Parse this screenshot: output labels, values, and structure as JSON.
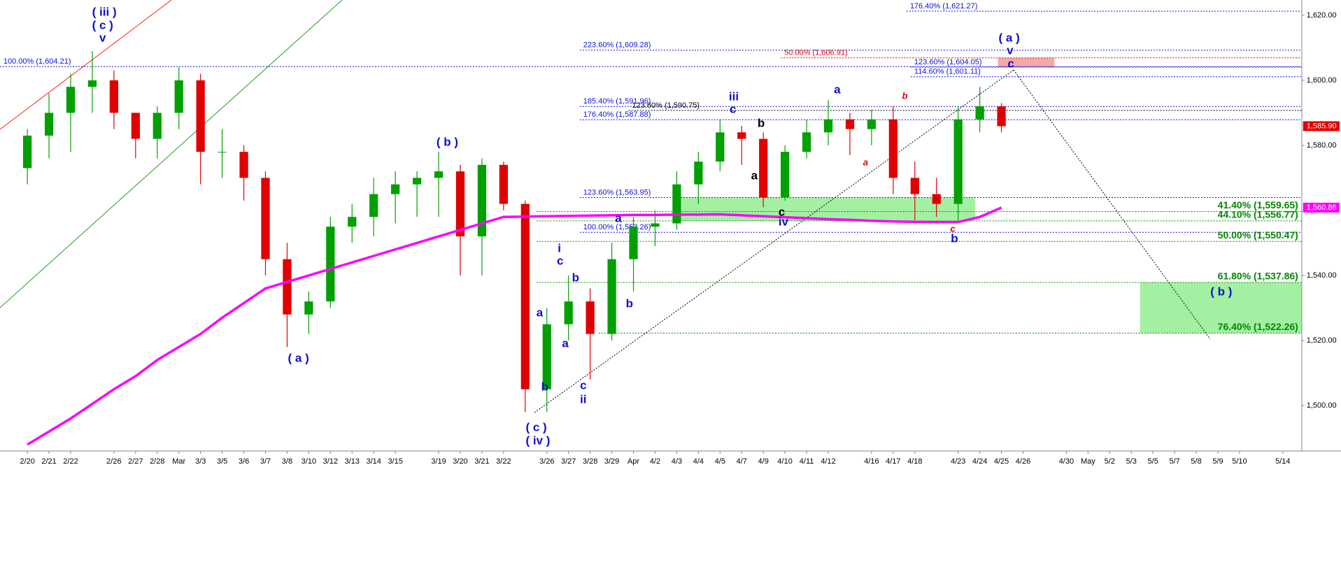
{
  "chart_data": {
    "type": "candlestick",
    "categories": [
      "2/20",
      "2/21",
      "2/22",
      null,
      "2/26",
      "2/27",
      "2/28",
      "Mar",
      "3/3",
      "3/5",
      "3/6",
      "3/7",
      "3/8",
      "3/10",
      "3/12",
      "3/13",
      "3/14",
      "3/15",
      null,
      "3/19",
      "3/20",
      "3/21",
      "3/22",
      null,
      "3/26",
      "3/27",
      "3/28",
      "3/29",
      "Apr",
      "4/2",
      "4/3",
      "4/4",
      "4/5",
      "4/7",
      "4/9",
      "4/10",
      "4/11",
      "4/12",
      null,
      "4/16",
      "4/17",
      "4/18",
      null,
      "4/23",
      "4/24",
      "4/25",
      "4/26",
      null,
      "4/30",
      "May",
      "5/2",
      "5/3",
      "5/5",
      "5/7",
      "5/8",
      "5/9",
      "5/10",
      null,
      "5/14"
    ],
    "price": {
      "up_color": "#00a000",
      "down_color": "#e00000",
      "open": [
        1573,
        1583,
        1590,
        1598,
        1600,
        1590,
        1582,
        1590,
        1600,
        1578,
        1578,
        1570,
        1545,
        1528,
        1532,
        1555,
        1558,
        1565,
        1568,
        1570,
        1572,
        1552,
        1574,
        1562,
        1505,
        1525,
        1532,
        1522,
        1545,
        1555,
        1556,
        1568,
        1575,
        1584,
        1582,
        1564,
        1578,
        1584,
        1588,
        1585,
        1588,
        1570,
        1565,
        1562,
        1588,
        1592,
        null,
        null,
        null,
        null,
        null,
        null,
        null,
        null,
        null,
        null,
        null,
        null,
        null
      ],
      "high": [
        1585,
        1596,
        1602,
        1609,
        1603,
        1590,
        1592,
        1604,
        1602,
        1585,
        1580,
        1572,
        1550,
        1535,
        1558,
        1562,
        1570,
        1572,
        1572,
        1578,
        1574,
        1576,
        1575,
        1563,
        1530,
        1540,
        1536,
        1550,
        1558,
        1560,
        1572,
        1578,
        1588,
        1586,
        1584,
        1580,
        1588,
        1594,
        1590,
        1591,
        1592,
        1575,
        1570,
        1592,
        1598,
        1593,
        null,
        null,
        null,
        null,
        null,
        null,
        null,
        null,
        null,
        null,
        null,
        null,
        null
      ],
      "low": [
        1568,
        1576,
        1578,
        1590,
        1585,
        1576,
        1576,
        1585,
        1568,
        1570,
        1563,
        1540,
        1518,
        1522,
        1530,
        1550,
        1552,
        1556,
        1558,
        1558,
        1540,
        1540,
        1560,
        1498,
        1498,
        1520,
        1508,
        1520,
        1535,
        1549,
        1554,
        1562,
        1572,
        1574,
        1561,
        1563,
        1576,
        1580,
        1577,
        1580,
        1565,
        1557,
        1558,
        1557,
        1584,
        1584,
        null,
        null,
        null,
        null,
        null,
        null,
        null,
        null,
        null,
        null,
        null,
        null,
        null
      ],
      "close": [
        1583,
        1590,
        1598,
        1600,
        1590,
        1582,
        1590,
        1600,
        1578,
        1578,
        1570,
        1545,
        1528,
        1532,
        1555,
        1558,
        1565,
        1568,
        1570,
        1572,
        1552,
        1574,
        1562,
        1505,
        1525,
        1532,
        1522,
        1545,
        1555,
        1556,
        1568,
        1575,
        1584,
        1582,
        1564,
        1578,
        1584,
        1588,
        1585,
        1588,
        1570,
        1565,
        1562,
        1588,
        1592,
        1585.9,
        null,
        null,
        null,
        null,
        null,
        null,
        null,
        null,
        null,
        null,
        null,
        null,
        null
      ],
      "last_label": "1,585.90"
    },
    "moving_average": {
      "color": "#ff00ff",
      "values": [
        1488,
        1492,
        1496,
        1500.5,
        1505,
        1509,
        1514,
        1518,
        1522,
        1527,
        1531.5,
        1536,
        1538,
        1540,
        1542,
        1544,
        1546,
        1548,
        1550,
        1552,
        1554,
        1556,
        1558,
        1558.1,
        1558.2,
        1558.3,
        1558.4,
        1558.5,
        1558.6,
        1558.6,
        1558.7,
        1558.7,
        1558.8,
        1558.5,
        1558.2,
        1557.9,
        1557.6,
        1557.3,
        1557.1,
        1556.8,
        1556.6,
        1556.5,
        1556.4,
        1556.4,
        1558,
        1560.86,
        null,
        null,
        null,
        null,
        null,
        null,
        null,
        null,
        null,
        null,
        null,
        null,
        null
      ],
      "last_label": "1,560.86"
    },
    "ylim": [
      1486,
      1624.7
    ],
    "yticks": [
      {
        "value": 1500,
        "label": "1,500.00"
      },
      {
        "value": 1520,
        "label": "1,520.00"
      },
      {
        "value": 1540,
        "label": "1,540.00"
      },
      {
        "value": 1560,
        "label": "1,560.00"
      },
      {
        "value": 1580,
        "label": "1,580.00"
      },
      {
        "value": 1600,
        "label": "1,600.00"
      },
      {
        "value": 1620,
        "label": "1,620.00"
      }
    ],
    "levels": [
      {
        "label": "176.40% (1,621.27)",
        "value": 1621.27,
        "color": "#1010e0"
      },
      {
        "label": "223.60% (1,609.28)",
        "value": 1609.28,
        "color": "#1010e0"
      },
      {
        "label": "50.00% (1,606.91)",
        "value": 1606.91,
        "color": "#e00000"
      },
      {
        "label": "123.60% (1,604.05)",
        "value": 1604.05,
        "color": "#1010e0"
      },
      {
        "label": "100.00% (1,604.21)",
        "value": 1604.21,
        "color": "#1010e0"
      },
      {
        "label": "114.60% (1,601.11)",
        "value": 1601.11,
        "color": "#1010e0"
      },
      {
        "label": "185.40% (1,591.96)",
        "value": 1591.96,
        "color": "#1010e0"
      },
      {
        "label": "123.60% (1,590.75)",
        "value": 1590.75,
        "color": "#000000"
      },
      {
        "label": "176.40% (1,587.88)",
        "value": 1587.88,
        "color": "#1010e0"
      },
      {
        "label": "123.60% (1,563.95)",
        "value": 1563.95,
        "color": "#1010e0"
      },
      {
        "label": "41.40% (1,559.65)",
        "value": 1559.65,
        "color": "#008800"
      },
      {
        "label": "44.10% (1,556.77)",
        "value": 1556.77,
        "color": "#008800"
      },
      {
        "label": "100.00% (1,553.26)",
        "value": 1553.26,
        "color": "#1010e0"
      },
      {
        "label": "50.00% (1,550.47)",
        "value": 1550.47,
        "color": "#008800"
      },
      {
        "label": "61.80% (1,537.86)",
        "value": 1537.86,
        "color": "#008800"
      },
      {
        "label": "76.40% (1,522.26)",
        "value": 1522.26,
        "color": "#008800"
      }
    ],
    "zones": [
      {
        "top": 1563.95,
        "bottom": 1556.77,
        "color": "#a3f0a3"
      },
      {
        "top": 1606.91,
        "bottom": 1604.05,
        "color": "#f4a9a9"
      },
      {
        "top": 1537.86,
        "bottom": 1522.26,
        "color": "#a3f0a3"
      }
    ],
    "annotations": [
      {
        "text": "( iii )",
        "color": "#1010c8"
      },
      {
        "text": "( c )",
        "color": "#1010c8"
      },
      {
        "text": "v",
        "color": "#1010c8"
      },
      {
        "text": "( a )",
        "color": "#1010c8"
      },
      {
        "text": "( b )",
        "color": "#1010c8"
      },
      {
        "text": "( c )",
        "color": "#1010c8"
      },
      {
        "text": "( iv )",
        "color": "#1010c8"
      },
      {
        "text": "a",
        "color": "#1010c8"
      },
      {
        "text": "b",
        "color": "#1010c8"
      },
      {
        "text": "i",
        "color": "#1010c8"
      },
      {
        "text": "c",
        "color": "#1010c8"
      },
      {
        "text": "b",
        "color": "#1010c8"
      },
      {
        "text": "a",
        "color": "#1010c8"
      },
      {
        "text": "c",
        "color": "#1010c8"
      },
      {
        "text": "ii",
        "color": "#1010c8"
      },
      {
        "text": "b",
        "color": "#1010c8"
      },
      {
        "text": "a",
        "color": "#1010c8"
      },
      {
        "text": "iii",
        "color": "#1010c8"
      },
      {
        "text": "c",
        "color": "#1010c8"
      },
      {
        "text": "b",
        "color": "#000000"
      },
      {
        "text": "a",
        "color": "#000000"
      },
      {
        "text": "c",
        "color": "#000000"
      },
      {
        "text": "iv",
        "color": "#1010c8"
      },
      {
        "text": "a",
        "color": "#1010c8"
      },
      {
        "text": "b",
        "color": "#e00000"
      },
      {
        "text": "a",
        "color": "#e00000"
      },
      {
        "text": "c",
        "color": "#e00000"
      },
      {
        "text": "b",
        "color": "#1010c8"
      },
      {
        "text": "( a )",
        "color": "#1010c8"
      },
      {
        "text": "v",
        "color": "#1010c8"
      },
      {
        "text": "c",
        "color": "#1010c8"
      },
      {
        "text": "( b )",
        "color": "#1010c8"
      }
    ]
  }
}
